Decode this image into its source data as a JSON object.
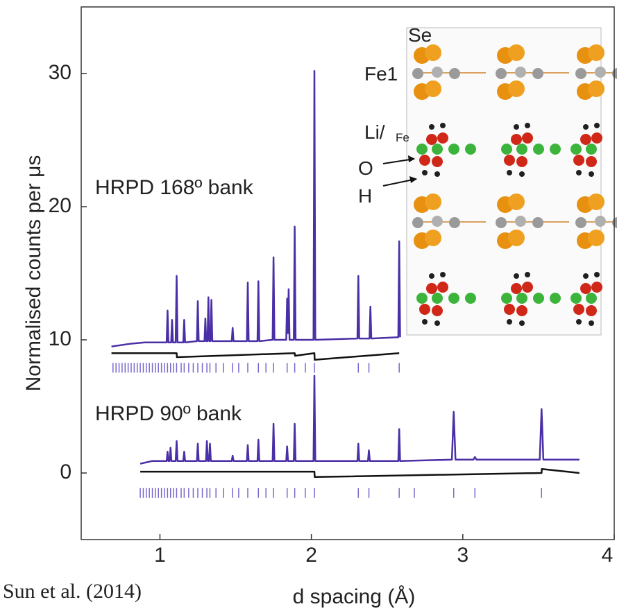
{
  "chart_data": {
    "type": "line",
    "xlabel": "d spacing (Å)",
    "ylabel": "Normalised counts per μs",
    "xlim": [
      0.48,
      4
    ],
    "ylim": [
      -5,
      35
    ],
    "xticks": [
      1,
      2,
      3,
      4
    ],
    "yticks": [
      0,
      10,
      20,
      30
    ],
    "annotations": [
      "HRPD 168º bank",
      "HRPD 90º bank"
    ],
    "credit": "Sun et al. (2014)",
    "inset_labels": [
      "Se",
      "Fe1",
      "Li/",
      "Fe",
      "O",
      "H"
    ],
    "series": [
      {
        "color": "#4a2fa6",
        "x": [
          0.68,
          0.8,
          0.9,
          1.0,
          1.044,
          1.05,
          1.056,
          1.074,
          1.08,
          1.086,
          1.104,
          1.11,
          1.116,
          1.154,
          1.16,
          1.166,
          1.244,
          1.25,
          1.256,
          1.294,
          1.3,
          1.306,
          1.314,
          1.32,
          1.326,
          1.334,
          1.34,
          1.346,
          1.474,
          1.48,
          1.486,
          1.574,
          1.58,
          1.586,
          1.644,
          1.65,
          1.656,
          1.744,
          1.75,
          1.756,
          1.834,
          1.84,
          1.845,
          1.85,
          1.856,
          1.884,
          1.89,
          1.896,
          2.014,
          2.02,
          2.026,
          2.304,
          2.31,
          2.316,
          2.384,
          2.39,
          2.396,
          2.574,
          2.58,
          2.586
        ],
        "values": [
          9.5,
          9.7,
          9.8,
          9.8,
          9.8,
          12.2,
          9.8,
          9.8,
          11.5,
          9.8,
          9.8,
          14.8,
          9.8,
          9.8,
          11.5,
          9.8,
          9.9,
          12.9,
          9.9,
          9.9,
          11.6,
          9.9,
          9.9,
          13.2,
          9.9,
          9.9,
          13.0,
          9.9,
          9.9,
          10.9,
          9.9,
          9.9,
          14.3,
          9.9,
          9.9,
          14.4,
          9.9,
          10.0,
          16.2,
          10.0,
          10.0,
          13.1,
          10.5,
          13.8,
          10.0,
          10.0,
          18.5,
          10.0,
          10.0,
          30.2,
          10.0,
          10.1,
          14.8,
          10.1,
          10.1,
          12.5,
          10.1,
          10.2,
          17.4,
          10.2
        ]
      },
      {
        "color": "#4a2fa6",
        "x": [
          0.87,
          0.95,
          1.0,
          1.044,
          1.05,
          1.056,
          1.064,
          1.07,
          1.076,
          1.104,
          1.11,
          1.116,
          1.154,
          1.16,
          1.166,
          1.244,
          1.25,
          1.256,
          1.304,
          1.31,
          1.316,
          1.324,
          1.33,
          1.336,
          1.474,
          1.48,
          1.486,
          1.574,
          1.58,
          1.586,
          1.644,
          1.65,
          1.656,
          1.744,
          1.75,
          1.756,
          1.834,
          1.84,
          1.846,
          1.884,
          1.89,
          1.896,
          2.014,
          2.02,
          2.026,
          2.304,
          2.31,
          2.316,
          2.374,
          2.38,
          2.386,
          2.574,
          2.58,
          2.586,
          2.928,
          2.94,
          2.952,
          3.07,
          3.08,
          3.09,
          3.508,
          3.52,
          3.532,
          3.77
        ],
        "values": [
          0.7,
          0.9,
          0.9,
          0.9,
          1.6,
          0.9,
          0.9,
          1.9,
          0.9,
          0.9,
          2.4,
          0.9,
          0.9,
          1.6,
          0.9,
          0.9,
          2.2,
          0.9,
          0.9,
          2.4,
          0.9,
          0.9,
          2.2,
          0.9,
          0.9,
          1.3,
          0.9,
          0.9,
          2.1,
          0.9,
          0.9,
          2.5,
          0.9,
          0.9,
          3.7,
          0.9,
          0.9,
          2.0,
          0.9,
          0.9,
          3.7,
          0.9,
          0.9,
          7.3,
          0.9,
          0.9,
          2.2,
          0.9,
          0.9,
          1.7,
          0.9,
          0.9,
          3.3,
          0.9,
          1.0,
          4.6,
          1.0,
          1.0,
          1.2,
          1.0,
          1.0,
          4.8,
          1.0,
          1.0
        ]
      },
      {
        "color": "#111111",
        "x": [
          0.68,
          1.11,
          1.112,
          1.89,
          1.892,
          2.02,
          2.022,
          2.58
        ],
        "values": [
          9.0,
          9.0,
          8.7,
          9.0,
          8.8,
          9.0,
          8.5,
          9.0
        ]
      },
      {
        "color": "#111111",
        "x": [
          0.87,
          2.02,
          2.022,
          3.52,
          3.522,
          3.77
        ],
        "values": [
          0.1,
          0.1,
          -0.3,
          0.0,
          0.3,
          0.0
        ]
      }
    ],
    "reflection_ticks": [
      {
        "color": "#7a66cc",
        "y": 7.9,
        "x": [
          0.69,
          0.71,
          0.73,
          0.75,
          0.77,
          0.79,
          0.81,
          0.83,
          0.85,
          0.87,
          0.89,
          0.91,
          0.93,
          0.95,
          0.97,
          0.99,
          1.01,
          1.03,
          1.05,
          1.07,
          1.09,
          1.11,
          1.14,
          1.16,
          1.19,
          1.22,
          1.25,
          1.28,
          1.31,
          1.33,
          1.37,
          1.42,
          1.48,
          1.52,
          1.58,
          1.65,
          1.7,
          1.75,
          1.84,
          1.89,
          1.96,
          2.02,
          2.31,
          2.38,
          2.58
        ]
      },
      {
        "color": "#7a66cc",
        "y": -1.5,
        "x": [
          0.87,
          0.89,
          0.91,
          0.93,
          0.95,
          0.97,
          0.99,
          1.01,
          1.03,
          1.05,
          1.07,
          1.09,
          1.11,
          1.14,
          1.16,
          1.19,
          1.22,
          1.25,
          1.28,
          1.31,
          1.33,
          1.37,
          1.42,
          1.48,
          1.52,
          1.58,
          1.65,
          1.7,
          1.75,
          1.84,
          1.89,
          1.96,
          2.02,
          2.31,
          2.38,
          2.58,
          2.68,
          2.94,
          3.08,
          3.52
        ]
      }
    ]
  }
}
